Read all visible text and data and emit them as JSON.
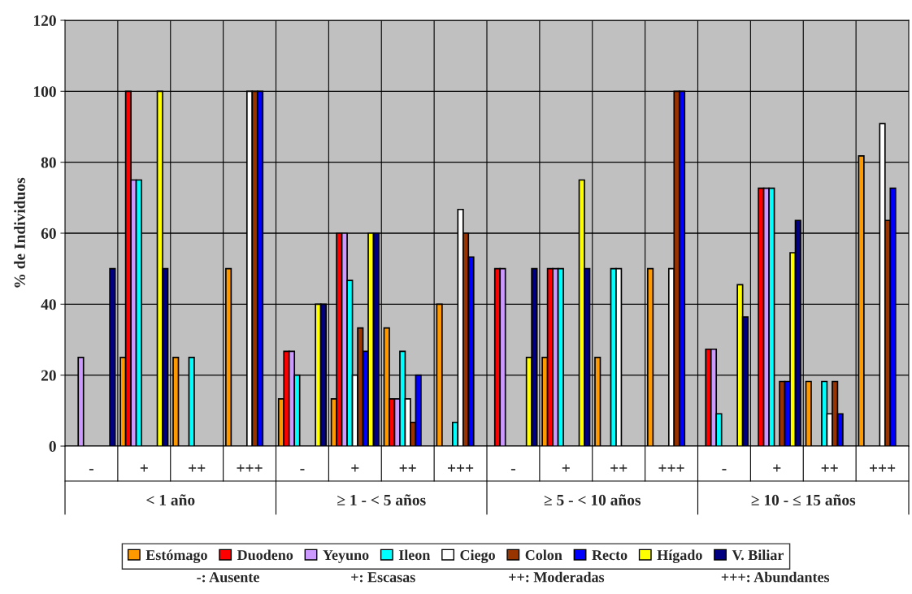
{
  "chart_data": {
    "type": "bar",
    "ylabel": "% de Individuos",
    "categories": [
      "-",
      "+",
      "++",
      "+++",
      "-",
      "+",
      "++",
      "+++",
      "-",
      "+",
      "++",
      "+++",
      "-",
      "+",
      "++",
      "+++"
    ],
    "series": [
      {
        "name": "Estómago",
        "color": "#ff9900",
        "values": [
          null,
          25,
          25,
          50,
          13.3,
          13.3,
          33.3,
          40,
          null,
          25,
          25,
          50,
          null,
          null,
          18.2,
          81.8
        ]
      },
      {
        "name": "Duodeno",
        "color": "#ff0000",
        "values": [
          null,
          100,
          null,
          null,
          26.7,
          60,
          13.3,
          null,
          50,
          50,
          null,
          null,
          27.3,
          72.7,
          null,
          null
        ]
      },
      {
        "name": "Yeyuno",
        "color": "#cc99ff",
        "values": [
          25,
          75,
          null,
          null,
          26.7,
          60,
          13.3,
          null,
          50,
          50,
          null,
          null,
          27.3,
          72.7,
          null,
          null
        ]
      },
      {
        "name": "Ileon",
        "color": "#00ffff",
        "values": [
          null,
          75,
          25,
          null,
          20,
          46.7,
          26.7,
          6.7,
          null,
          50,
          50,
          null,
          9.1,
          72.7,
          18.2,
          null
        ]
      },
      {
        "name": "Ciego",
        "color": "#ffffff",
        "values": [
          null,
          null,
          null,
          100,
          null,
          20,
          13.3,
          66.7,
          null,
          null,
          50,
          50,
          null,
          null,
          9.1,
          90.9
        ]
      },
      {
        "name": "Colon",
        "color": "#993300",
        "values": [
          null,
          null,
          null,
          100,
          null,
          33.3,
          6.7,
          60,
          null,
          null,
          null,
          100,
          null,
          18.2,
          18.2,
          63.6
        ]
      },
      {
        "name": "Recto",
        "color": "#0000ff",
        "values": [
          null,
          null,
          null,
          100,
          null,
          26.7,
          20,
          53.3,
          null,
          null,
          null,
          100,
          null,
          18.2,
          9.1,
          72.7
        ]
      },
      {
        "name": "Hígado",
        "color": "#ffff00",
        "values": [
          null,
          100,
          null,
          null,
          40,
          60,
          null,
          null,
          25,
          75,
          null,
          null,
          45.5,
          54.5,
          null,
          null
        ]
      },
      {
        "name": "V. Biliar",
        "color": "#000080",
        "values": [
          50,
          50,
          null,
          null,
          40,
          60,
          null,
          null,
          50,
          50,
          null,
          null,
          36.4,
          63.6,
          null,
          null
        ]
      }
    ],
    "ylim": [
      0,
      120
    ],
    "yticks": [
      0,
      20,
      40,
      60,
      80,
      100,
      120
    ],
    "grid": "y",
    "legend": "bottom",
    "annotations": [
      "< 1 año",
      "≥ 1 - < 5 años",
      "≥ 5 - < 10 años",
      "≥ 10 - ≤ 15 años",
      "-: Ausente",
      "+: Escasas",
      "++: Moderadas",
      "+++: Abundantes"
    ]
  }
}
